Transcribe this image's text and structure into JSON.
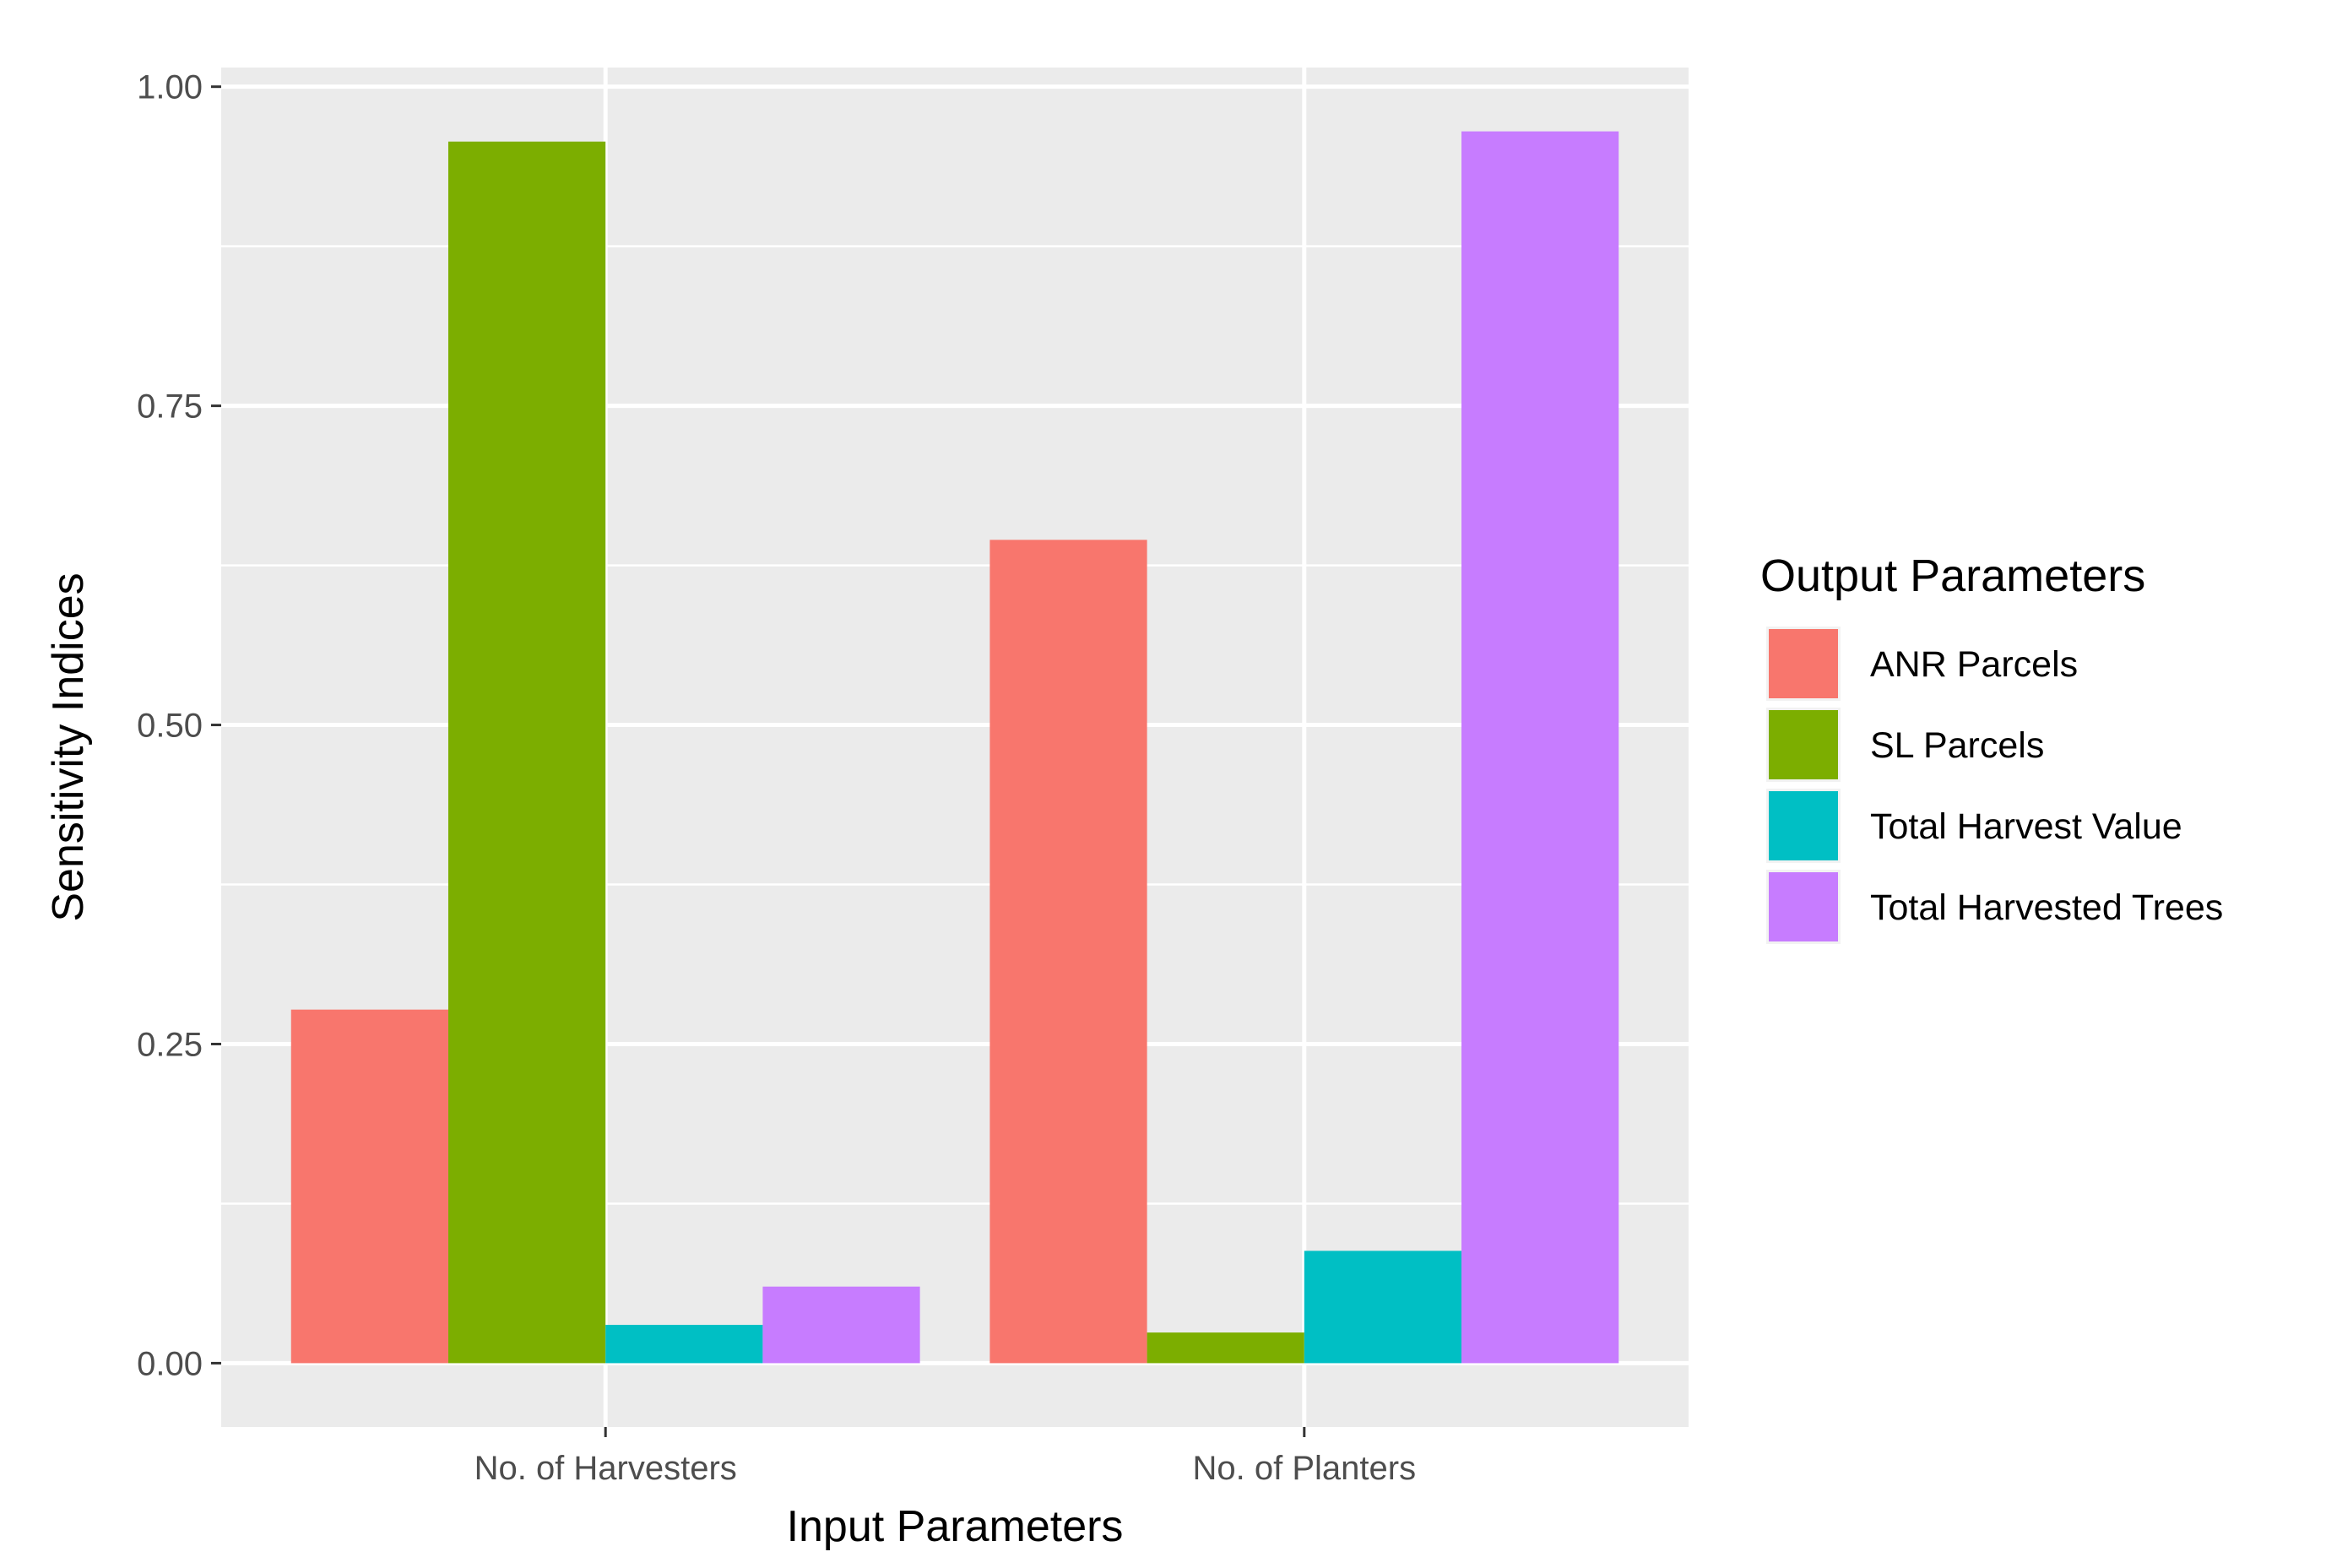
{
  "chart_data": {
    "type": "bar",
    "xlabel": "Input Parameters",
    "ylabel": "Sensitivity Indices",
    "categories": [
      "No. of Harvesters",
      "No. of Planters"
    ],
    "ylim": [
      -0.05,
      1.015
    ],
    "y_ticks": [
      0.0,
      0.25,
      0.5,
      0.75,
      1.0
    ],
    "y_tick_labels": [
      "0.00",
      "0.25",
      "0.50",
      "0.75",
      "1.00"
    ],
    "grid": true,
    "legend": {
      "title": "Output Parameters",
      "placement": "right"
    },
    "series": [
      {
        "name": "ANR Parcels",
        "color": "#F8766D",
        "values": [
          0.277,
          0.645
        ]
      },
      {
        "name": "SL Parcels",
        "color": "#7CAE00",
        "values": [
          0.957,
          0.024
        ]
      },
      {
        "name": "Total Harvest Value",
        "color": "#00BFC4",
        "values": [
          0.03,
          0.088
        ]
      },
      {
        "name": "Total Harvested Trees",
        "color": "#C77CFF",
        "values": [
          0.06,
          0.965
        ]
      }
    ]
  }
}
